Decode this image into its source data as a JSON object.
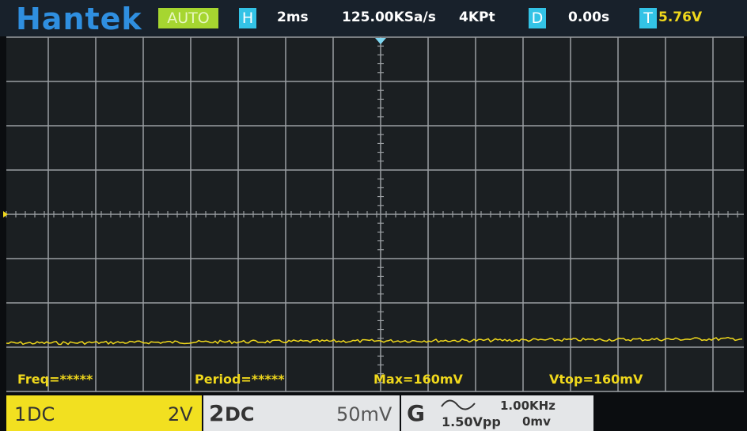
{
  "header": {
    "brand": "Hantek",
    "mode": "AUTO",
    "h_icon": "H",
    "timebase": "2ms",
    "sample_rate": "125.00KSa/s",
    "memory": "4KPt",
    "d_icon": "D",
    "delay": "0.00s",
    "t_icon": "T",
    "trigger_level": "5.76V"
  },
  "measurements": {
    "freq": "Freq=*****",
    "period": "Period=*****",
    "max": "Max=160mV",
    "vtop": "Vtop=160mV"
  },
  "footer": {
    "ch1": {
      "number": "1",
      "coupling": "DC",
      "scale": "2V"
    },
    "ch2": {
      "number": "2",
      "coupling": "DC",
      "scale": "50mV"
    },
    "generator": {
      "label": "G",
      "frequency": "1.00KHz",
      "amplitude": "1.50Vpp",
      "offset": "0mv"
    }
  }
}
